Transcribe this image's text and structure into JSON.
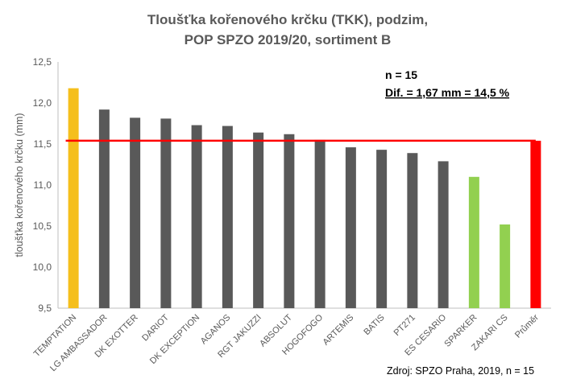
{
  "chart_data": {
    "type": "bar",
    "title_line1": "Tloušťka kořenového krčku (TKK), podzim,",
    "title_line2": "POP SPZO 2019/20, sortiment B",
    "ylabel": "tloušťka kořenového krčku (mm)",
    "xlabel": "",
    "ylim": [
      9.5,
      12.5
    ],
    "yticks": [
      "9,5",
      "10,0",
      "10,5",
      "11,0",
      "11,5",
      "12,0",
      "12,5"
    ],
    "ytick_values": [
      9.5,
      10.0,
      10.5,
      11.0,
      11.5,
      12.0,
      12.5
    ],
    "categories": [
      "TEMPTATION",
      "LG AMBASSADOR",
      "DK EXOTTER",
      "DARIOT",
      "DK EXCEPTION",
      "AGANOS",
      "RGT JAKUZZI",
      "ABSOLUT",
      "HOGOFOGO",
      "ARTEMIS",
      "BATIS",
      "PT271",
      "ES CESARIO",
      "SPARKER",
      "ZAKARI CS",
      "Průměr"
    ],
    "values": [
      12.18,
      11.92,
      11.82,
      11.81,
      11.73,
      11.72,
      11.64,
      11.62,
      11.55,
      11.46,
      11.43,
      11.39,
      11.29,
      11.1,
      10.52,
      11.54
    ],
    "bar_colors": [
      "#F5BF1C",
      "#595959",
      "#595959",
      "#595959",
      "#595959",
      "#595959",
      "#595959",
      "#595959",
      "#595959",
      "#595959",
      "#595959",
      "#595959",
      "#595959",
      "#92D050",
      "#92D050",
      "#FF0000"
    ],
    "reference_line": 11.54,
    "reference_line_color": "#FF0000",
    "grid": false,
    "annotation_n": "n = 15",
    "annotation_dif": "Dif. = 1,67 mm = 14,5 %",
    "source": "Zdroj: SPZO Praha, 2019, n = 15"
  }
}
